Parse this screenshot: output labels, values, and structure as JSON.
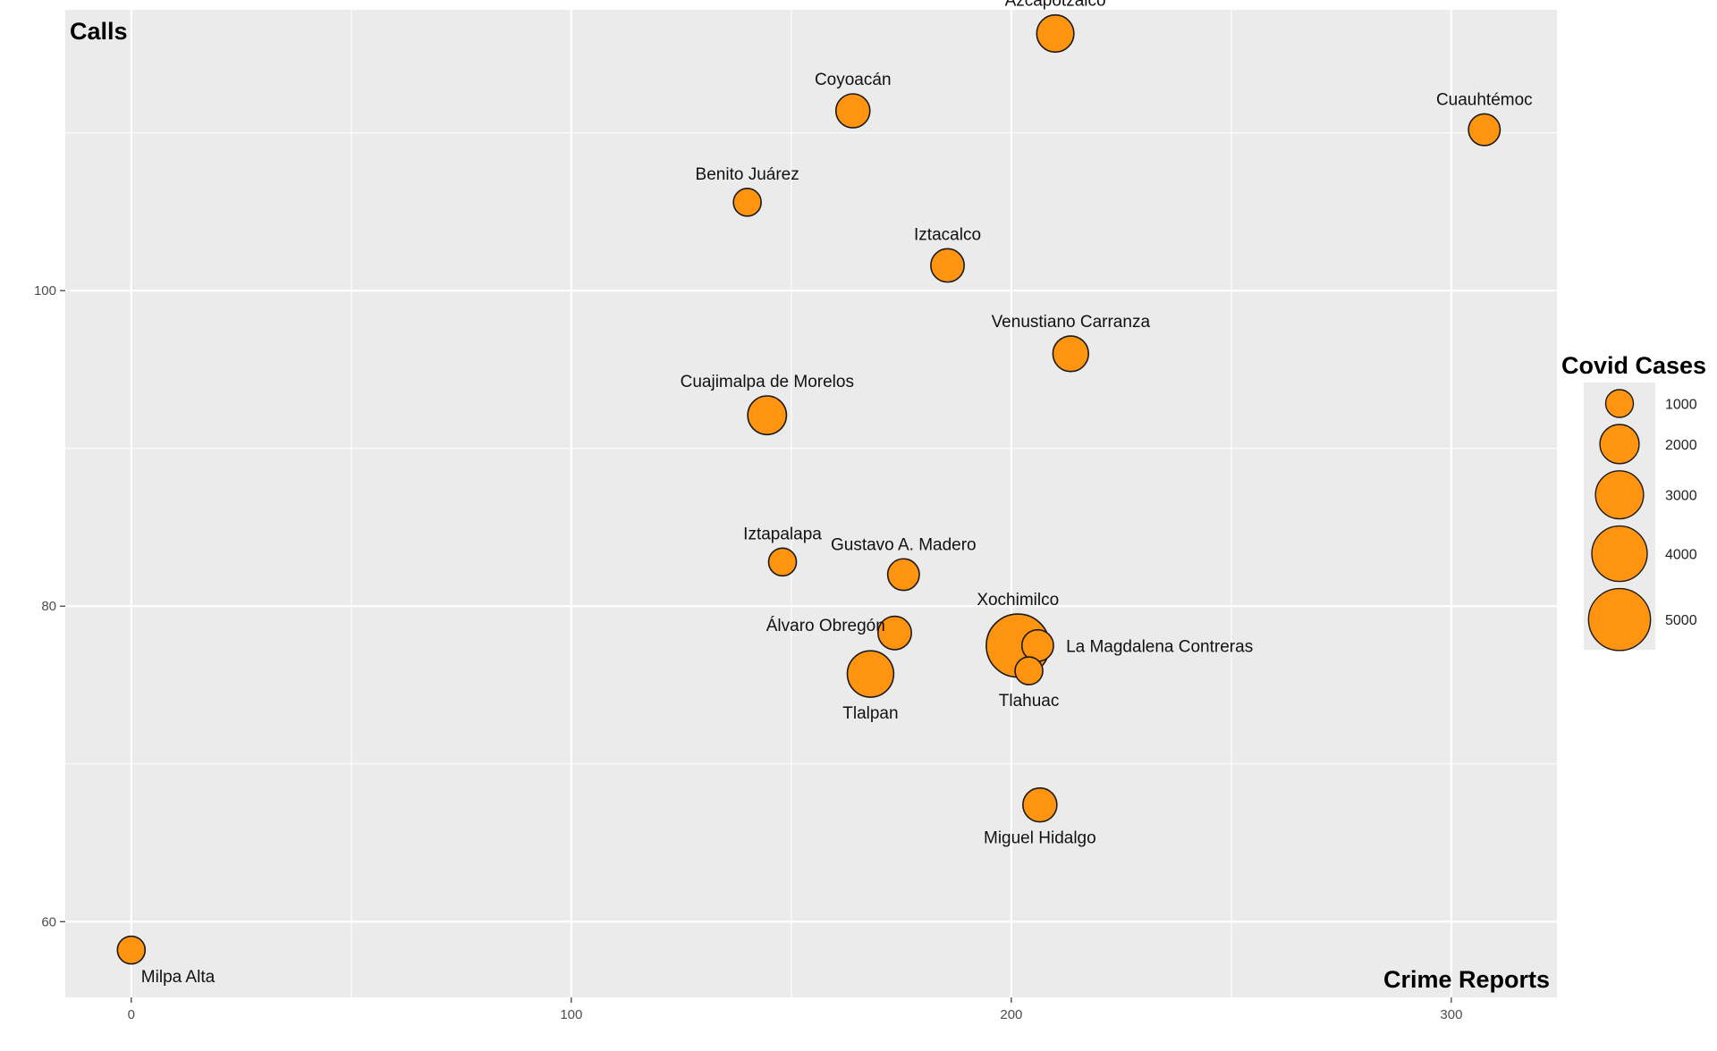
{
  "chart_data": {
    "type": "scatter",
    "title_y_corner": "Calls",
    "title_x_corner": "Crime Reports",
    "xlim": [
      -15,
      324
    ],
    "ylim": [
      55.2,
      117.8
    ],
    "x_ticks": [
      0,
      100,
      200,
      300
    ],
    "y_ticks": [
      60,
      80,
      100
    ],
    "grid": true,
    "colors": {
      "panel": "#ebebeb",
      "grid": "#ffffff",
      "point_fill": "#ff9410",
      "point_stroke": "#1a1a1a"
    },
    "size_legend": {
      "title": "Covid Cases",
      "placement": "right",
      "breaks": [
        {
          "value": 1000,
          "label": "1000"
        },
        {
          "value": 2000,
          "label": "2000"
        },
        {
          "value": 3000,
          "label": "3000"
        },
        {
          "value": 4000,
          "label": "4000"
        },
        {
          "value": 5000,
          "label": "5000"
        }
      ]
    },
    "points": [
      {
        "label": "Azcapotzalco",
        "x": 210,
        "y": 116.3,
        "size": 1800,
        "label_pos": "above"
      },
      {
        "label": "Coyoacán",
        "x": 164,
        "y": 111.4,
        "size": 1500,
        "label_pos": "above"
      },
      {
        "label": "Cuauhtémoc",
        "x": 307.5,
        "y": 110.2,
        "size": 1300,
        "label_pos": "above"
      },
      {
        "label": "Benito Juárez",
        "x": 140,
        "y": 105.6,
        "size": 1000,
        "label_pos": "above"
      },
      {
        "label": "Iztacalco",
        "x": 185.5,
        "y": 101.6,
        "size": 1450,
        "label_pos": "above"
      },
      {
        "label": "Venustiano Carranza",
        "x": 213.5,
        "y": 96.0,
        "size": 1650,
        "label_pos": "above"
      },
      {
        "label": "Cuajimalpa de Morelos",
        "x": 144.5,
        "y": 92.1,
        "size": 1950,
        "label_pos": "above"
      },
      {
        "label": "Iztapalapa",
        "x": 148,
        "y": 82.8,
        "size": 1000,
        "label_pos": "above"
      },
      {
        "label": "Gustavo A. Madero",
        "x": 175.5,
        "y": 82.0,
        "size": 1300,
        "label_pos": "above"
      },
      {
        "label": "Álvaro Obregón",
        "x": 173.5,
        "y": 78.3,
        "size": 1450,
        "label_pos": "above-left"
      },
      {
        "label": "Tlalpan",
        "x": 168,
        "y": 75.7,
        "size": 2800,
        "label_pos": "below"
      },
      {
        "label": "La Magdalena Contreras",
        "x": 206,
        "y": 77.5,
        "size": 1300,
        "label_pos": "right"
      },
      {
        "label": "Tlahuac",
        "x": 204,
        "y": 75.9,
        "size": 1000,
        "label_pos": "below"
      },
      {
        "label": "Xochimilco",
        "x": 201.5,
        "y": 77.5,
        "size": 5200,
        "label_pos": "above"
      },
      {
        "label": "Miguel Hidalgo",
        "x": 206.5,
        "y": 67.4,
        "size": 1500,
        "label_pos": "below"
      },
      {
        "label": "Milpa Alta",
        "x": 0,
        "y": 58.2,
        "size": 1000,
        "label_pos": "below-right"
      }
    ]
  }
}
